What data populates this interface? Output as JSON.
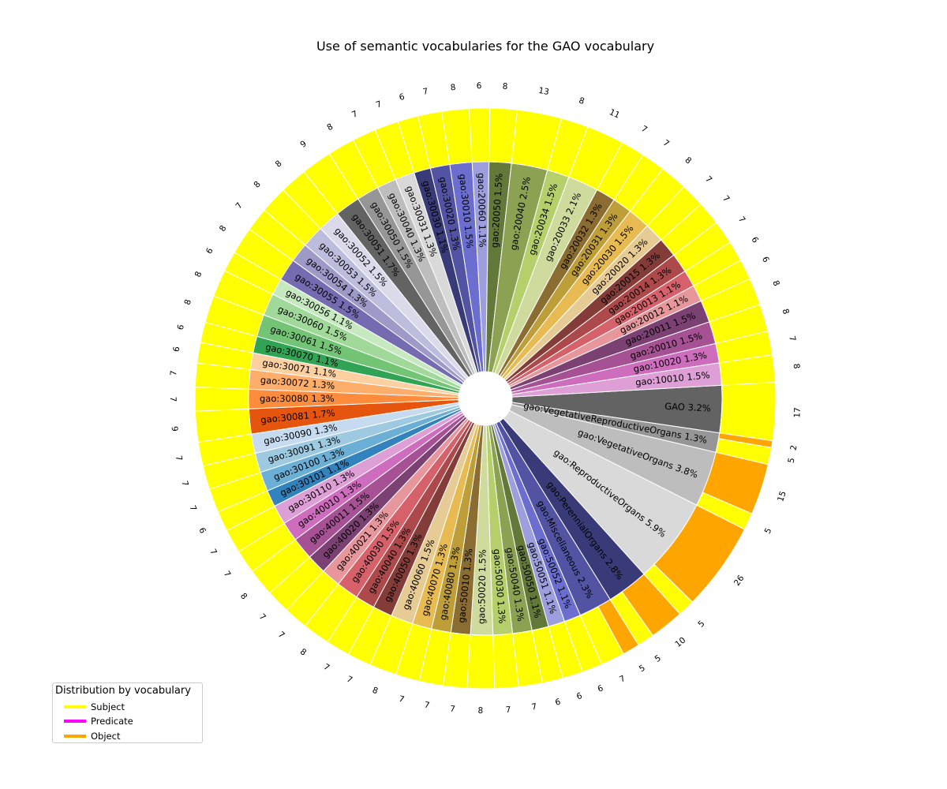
{
  "chart_data": {
    "type": "pie",
    "title": "Use of semantic vocabularies for the GAO vocabulary",
    "legend": {
      "title": "Distribution by vocabulary",
      "placement": "bottom-left",
      "entries": [
        {
          "name": "Subject",
          "color": "#ffff00"
        },
        {
          "name": "Predicate",
          "color": "#ff00ff"
        },
        {
          "name": "Object",
          "color": "#ffa500"
        }
      ]
    },
    "segments": [
      {
        "label": "GAO",
        "pct": "3.2%",
        "color": "#636363",
        "parts": [
          {
            "role": "Subject",
            "count": 17
          }
        ]
      },
      {
        "label": "gao:VegetativeReproductiveOrgans",
        "pct": "1.3%",
        "color": "#969696",
        "parts": [
          {
            "role": "Object",
            "count": 2
          },
          {
            "role": "Subject",
            "count": 5
          }
        ]
      },
      {
        "label": "gao:VegetativeOrgans",
        "pct": "3.8%",
        "color": "#bdbdbd",
        "parts": [
          {
            "role": "Object",
            "count": 15
          },
          {
            "role": "Subject",
            "count": 5
          }
        ]
      },
      {
        "label": "gao:ReproductiveOrgans",
        "pct": "5.9%",
        "color": "#d9d9d9",
        "parts": [
          {
            "role": "Object",
            "count": 26
          },
          {
            "role": "Subject",
            "count": 5
          }
        ]
      },
      {
        "label": "gao:PerennialOrgans",
        "pct": "2.8%",
        "color": "#393b79",
        "parts": [
          {
            "role": "Object",
            "count": 10
          },
          {
            "role": "Subject",
            "count": 5
          }
        ]
      },
      {
        "label": "gao:Miscellaneous",
        "pct": "2.3%",
        "color": "#5254a3",
        "parts": [
          {
            "role": "Object",
            "count": 5
          },
          {
            "role": "Subject",
            "count": 7
          }
        ]
      },
      {
        "label": "gao:50052",
        "pct": "1.1%",
        "color": "#6b6ecf",
        "parts": [
          {
            "role": "Subject",
            "count": 6
          }
        ]
      },
      {
        "label": "gao:50051",
        "pct": "1.1%",
        "color": "#9c9ede",
        "parts": [
          {
            "role": "Subject",
            "count": 6
          }
        ]
      },
      {
        "label": "gao:50050",
        "pct": "1.1%",
        "color": "#637939",
        "parts": [
          {
            "role": "Subject",
            "count": 6
          }
        ]
      },
      {
        "label": "gao:50040",
        "pct": "1.3%",
        "color": "#8ca252",
        "parts": [
          {
            "role": "Subject",
            "count": 7
          }
        ]
      },
      {
        "label": "gao:50030",
        "pct": "1.3%",
        "color": "#b5cf6b",
        "parts": [
          {
            "role": "Subject",
            "count": 7
          }
        ]
      },
      {
        "label": "gao:50020",
        "pct": "1.5%",
        "color": "#cedb9c",
        "parts": [
          {
            "role": "Subject",
            "count": 8
          }
        ]
      },
      {
        "label": "gao:50010",
        "pct": "1.3%",
        "color": "#8c6d31",
        "parts": [
          {
            "role": "Subject",
            "count": 7
          }
        ]
      },
      {
        "label": "gao:40080",
        "pct": "1.3%",
        "color": "#bd9e39",
        "parts": [
          {
            "role": "Subject",
            "count": 7
          }
        ]
      },
      {
        "label": "gao:40070",
        "pct": "1.3%",
        "color": "#e7ba52",
        "parts": [
          {
            "role": "Subject",
            "count": 7
          }
        ]
      },
      {
        "label": "gao:40060",
        "pct": "1.5%",
        "color": "#e7cb94",
        "parts": [
          {
            "role": "Subject",
            "count": 8
          }
        ]
      },
      {
        "label": "gao:40050",
        "pct": "1.3%",
        "color": "#843c39",
        "parts": [
          {
            "role": "Subject",
            "count": 7
          }
        ]
      },
      {
        "label": "gao:40040",
        "pct": "1.3%",
        "color": "#ad494a",
        "parts": [
          {
            "role": "Subject",
            "count": 7
          }
        ]
      },
      {
        "label": "gao:40030",
        "pct": "1.5%",
        "color": "#d6616b",
        "parts": [
          {
            "role": "Subject",
            "count": 8
          }
        ]
      },
      {
        "label": "gao:40021",
        "pct": "1.3%",
        "color": "#e7969c",
        "parts": [
          {
            "role": "Subject",
            "count": 7
          }
        ]
      },
      {
        "label": "gao:40020",
        "pct": "1.3%",
        "color": "#7b4173",
        "parts": [
          {
            "role": "Subject",
            "count": 7
          }
        ]
      },
      {
        "label": "gao:40011",
        "pct": "1.5%",
        "color": "#a55194",
        "parts": [
          {
            "role": "Subject",
            "count": 8
          }
        ]
      },
      {
        "label": "gao:40010",
        "pct": "1.3%",
        "color": "#ce6dbd",
        "parts": [
          {
            "role": "Subject",
            "count": 7
          }
        ]
      },
      {
        "label": "gao:30110",
        "pct": "1.3%",
        "color": "#de9ed6",
        "parts": [
          {
            "role": "Subject",
            "count": 7
          }
        ]
      },
      {
        "label": "gao:30101",
        "pct": "1.1%",
        "color": "#3182bd",
        "parts": [
          {
            "role": "Subject",
            "count": 6
          }
        ]
      },
      {
        "label": "gao:30100",
        "pct": "1.3%",
        "color": "#6baed6",
        "parts": [
          {
            "role": "Subject",
            "count": 7
          }
        ]
      },
      {
        "label": "gao:30091",
        "pct": "1.3%",
        "color": "#9ecae1",
        "parts": [
          {
            "role": "Subject",
            "count": 7
          }
        ]
      },
      {
        "label": "gao:30090",
        "pct": "1.3%",
        "color": "#c6dbef",
        "parts": [
          {
            "role": "Subject",
            "count": 7
          }
        ]
      },
      {
        "label": "gao:30081",
        "pct": "1.7%",
        "color": "#e6550d",
        "parts": [
          {
            "role": "Subject",
            "count": 9
          }
        ]
      },
      {
        "label": "gao:30080",
        "pct": "1.3%",
        "color": "#fd8d3c",
        "parts": [
          {
            "role": "Subject",
            "count": 7
          }
        ]
      },
      {
        "label": "gao:30072",
        "pct": "1.3%",
        "color": "#fdae6b",
        "parts": [
          {
            "role": "Subject",
            "count": 7
          }
        ]
      },
      {
        "label": "gao:30071",
        "pct": "1.1%",
        "color": "#fdd0a2",
        "parts": [
          {
            "role": "Subject",
            "count": 6
          }
        ]
      },
      {
        "label": "gao:30070",
        "pct": "1.1%",
        "color": "#31a354",
        "parts": [
          {
            "role": "Subject",
            "count": 6
          }
        ]
      },
      {
        "label": "gao:30061",
        "pct": "1.5%",
        "color": "#74c476",
        "parts": [
          {
            "role": "Subject",
            "count": 8
          }
        ]
      },
      {
        "label": "gao:30060",
        "pct": "1.5%",
        "color": "#a1d99b",
        "parts": [
          {
            "role": "Subject",
            "count": 8
          }
        ]
      },
      {
        "label": "gao:30056",
        "pct": "1.1%",
        "color": "#c7e9c0",
        "parts": [
          {
            "role": "Subject",
            "count": 6
          }
        ]
      },
      {
        "label": "gao:30055",
        "pct": "1.5%",
        "color": "#756bb1",
        "parts": [
          {
            "role": "Subject",
            "count": 8
          }
        ]
      },
      {
        "label": "gao:30054",
        "pct": "1.3%",
        "color": "#9e9ac8",
        "parts": [
          {
            "role": "Subject",
            "count": 7
          }
        ]
      },
      {
        "label": "gao:30053",
        "pct": "1.5%",
        "color": "#bcbddc",
        "parts": [
          {
            "role": "Subject",
            "count": 8
          }
        ]
      },
      {
        "label": "gao:30052",
        "pct": "1.5%",
        "color": "#dadaeb",
        "parts": [
          {
            "role": "Subject",
            "count": 8
          }
        ]
      },
      {
        "label": "gao:30051",
        "pct": "1.7%",
        "color": "#636363",
        "parts": [
          {
            "role": "Subject",
            "count": 9
          }
        ]
      },
      {
        "label": "gao:30050",
        "pct": "1.5%",
        "color": "#969696",
        "parts": [
          {
            "role": "Subject",
            "count": 8
          }
        ]
      },
      {
        "label": "gao:30040",
        "pct": "1.3%",
        "color": "#bdbdbd",
        "parts": [
          {
            "role": "Subject",
            "count": 7
          }
        ]
      },
      {
        "label": "gao:30031",
        "pct": "1.3%",
        "color": "#d9d9d9",
        "parts": [
          {
            "role": "Subject",
            "count": 7
          }
        ]
      },
      {
        "label": "gao:30030",
        "pct": "1.1%",
        "color": "#393b79",
        "parts": [
          {
            "role": "Subject",
            "count": 6
          }
        ]
      },
      {
        "label": "gao:30020",
        "pct": "1.3%",
        "color": "#5254a3",
        "parts": [
          {
            "role": "Subject",
            "count": 7
          }
        ]
      },
      {
        "label": "gao:30010",
        "pct": "1.5%",
        "color": "#6b6ecf",
        "parts": [
          {
            "role": "Subject",
            "count": 8
          }
        ]
      },
      {
        "label": "gao:20060",
        "pct": "1.1%",
        "color": "#9c9ede",
        "parts": [
          {
            "role": "Subject",
            "count": 6
          }
        ]
      },
      {
        "label": "gao:20050",
        "pct": "1.5%",
        "color": "#637939",
        "parts": [
          {
            "role": "Subject",
            "count": 8
          }
        ]
      },
      {
        "label": "gao:20040",
        "pct": "2.5%",
        "color": "#8ca252",
        "parts": [
          {
            "role": "Subject",
            "count": 13
          }
        ]
      },
      {
        "label": "gao:20034",
        "pct": "1.5%",
        "color": "#b5cf6b",
        "parts": [
          {
            "role": "Subject",
            "count": 8
          }
        ]
      },
      {
        "label": "gao:20033",
        "pct": "2.1%",
        "color": "#cedb9c",
        "parts": [
          {
            "role": "Subject",
            "count": 11
          }
        ]
      },
      {
        "label": "gao:20032",
        "pct": "1.3%",
        "color": "#8c6d31",
        "parts": [
          {
            "role": "Subject",
            "count": 7
          }
        ]
      },
      {
        "label": "gao:20031",
        "pct": "1.3%",
        "color": "#bd9e39",
        "parts": [
          {
            "role": "Subject",
            "count": 7
          }
        ]
      },
      {
        "label": "gao:20030",
        "pct": "1.5%",
        "color": "#e7ba52",
        "parts": [
          {
            "role": "Subject",
            "count": 8
          }
        ]
      },
      {
        "label": "gao:20020",
        "pct": "1.3%",
        "color": "#e7cb94",
        "parts": [
          {
            "role": "Subject",
            "count": 7
          }
        ]
      },
      {
        "label": "gao:20015",
        "pct": "1.3%",
        "color": "#843c39",
        "parts": [
          {
            "role": "Subject",
            "count": 7
          }
        ]
      },
      {
        "label": "gao:20014",
        "pct": "1.3%",
        "color": "#ad494a",
        "parts": [
          {
            "role": "Subject",
            "count": 7
          }
        ]
      },
      {
        "label": "gao:20013",
        "pct": "1.1%",
        "color": "#d6616b",
        "parts": [
          {
            "role": "Subject",
            "count": 6
          }
        ]
      },
      {
        "label": "gao:20012",
        "pct": "1.1%",
        "color": "#e7969c",
        "parts": [
          {
            "role": "Subject",
            "count": 6
          }
        ]
      },
      {
        "label": "gao:20011",
        "pct": "1.5%",
        "color": "#7b4173",
        "parts": [
          {
            "role": "Subject",
            "count": 8
          }
        ]
      },
      {
        "label": "gao:20010",
        "pct": "1.5%",
        "color": "#a55194",
        "parts": [
          {
            "role": "Subject",
            "count": 8
          }
        ]
      },
      {
        "label": "gao:10020",
        "pct": "1.3%",
        "color": "#ce6dbd",
        "parts": [
          {
            "role": "Subject",
            "count": 7
          }
        ]
      },
      {
        "label": "gao:10010",
        "pct": "1.5%",
        "color": "#de9ed6",
        "parts": [
          {
            "role": "Subject",
            "count": 8
          }
        ]
      }
    ]
  }
}
